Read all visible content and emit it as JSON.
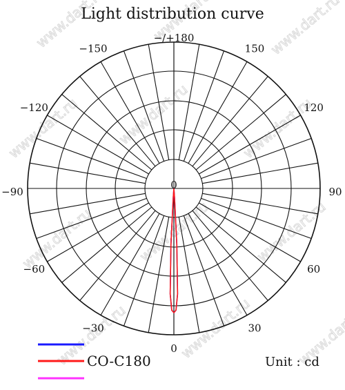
{
  "chart_data": {
    "type": "polar",
    "title": "Light distribution curve",
    "angle_tick_labels": [
      "−/+180",
      "150",
      "120",
      "90",
      "60",
      "30",
      "0",
      "−30",
      "−60",
      "−90",
      "−120",
      "−150"
    ],
    "angle_tick_values": [
      180,
      150,
      120,
      90,
      60,
      30,
      0,
      -30,
      -60,
      -90,
      -120,
      -150
    ],
    "center_label": "0",
    "unit_label": "Unit : cd",
    "legend": [
      {
        "color": "#1a1aff",
        "label": ""
      },
      {
        "color": "#ff1a1a",
        "label": "CO-C180"
      },
      {
        "color": "#ff33ff",
        "label": ""
      }
    ],
    "series": [
      {
        "color": "#1a1aff",
        "angles_deg": [
          -4,
          -3,
          -2,
          -1,
          0,
          1,
          2,
          3,
          4
        ],
        "relative_intensity": [
          0.08,
          0.45,
          0.85,
          0.98,
          1.0,
          0.98,
          0.85,
          0.45,
          0.08
        ]
      },
      {
        "color": "#ff1a1a",
        "angles_deg": [
          -4,
          -3,
          -2,
          -1,
          0,
          1,
          2,
          3,
          4
        ],
        "relative_intensity": [
          0.08,
          0.45,
          0.85,
          0.98,
          1.0,
          0.98,
          0.85,
          0.45,
          0.08
        ]
      }
    ],
    "grid": true
  },
  "watermark": "www.dart.ru"
}
